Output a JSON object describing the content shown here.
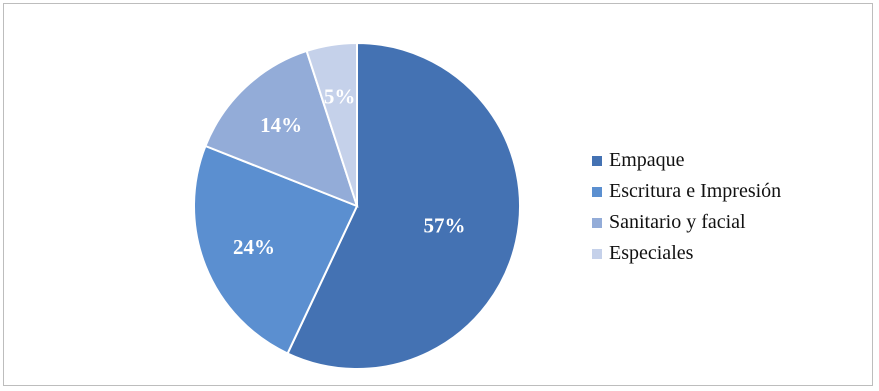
{
  "chart_data": {
    "type": "pie",
    "title": "",
    "slices": [
      {
        "label": "Empaque",
        "value": 57,
        "display": "57%",
        "color": "#4472b3"
      },
      {
        "label": "Escritura e Impresión",
        "value": 24,
        "display": "24%",
        "color": "#5b8fd0"
      },
      {
        "label": "Sanitario y facial",
        "value": 14,
        "display": "14%",
        "color": "#93acd8"
      },
      {
        "label": "Especiales",
        "value": 5,
        "display": "5%",
        "color": "#c5d1ea"
      }
    ],
    "start_angle_deg": 0,
    "direction": "clockwise",
    "legend_position": "right",
    "data_labels": "inside"
  }
}
